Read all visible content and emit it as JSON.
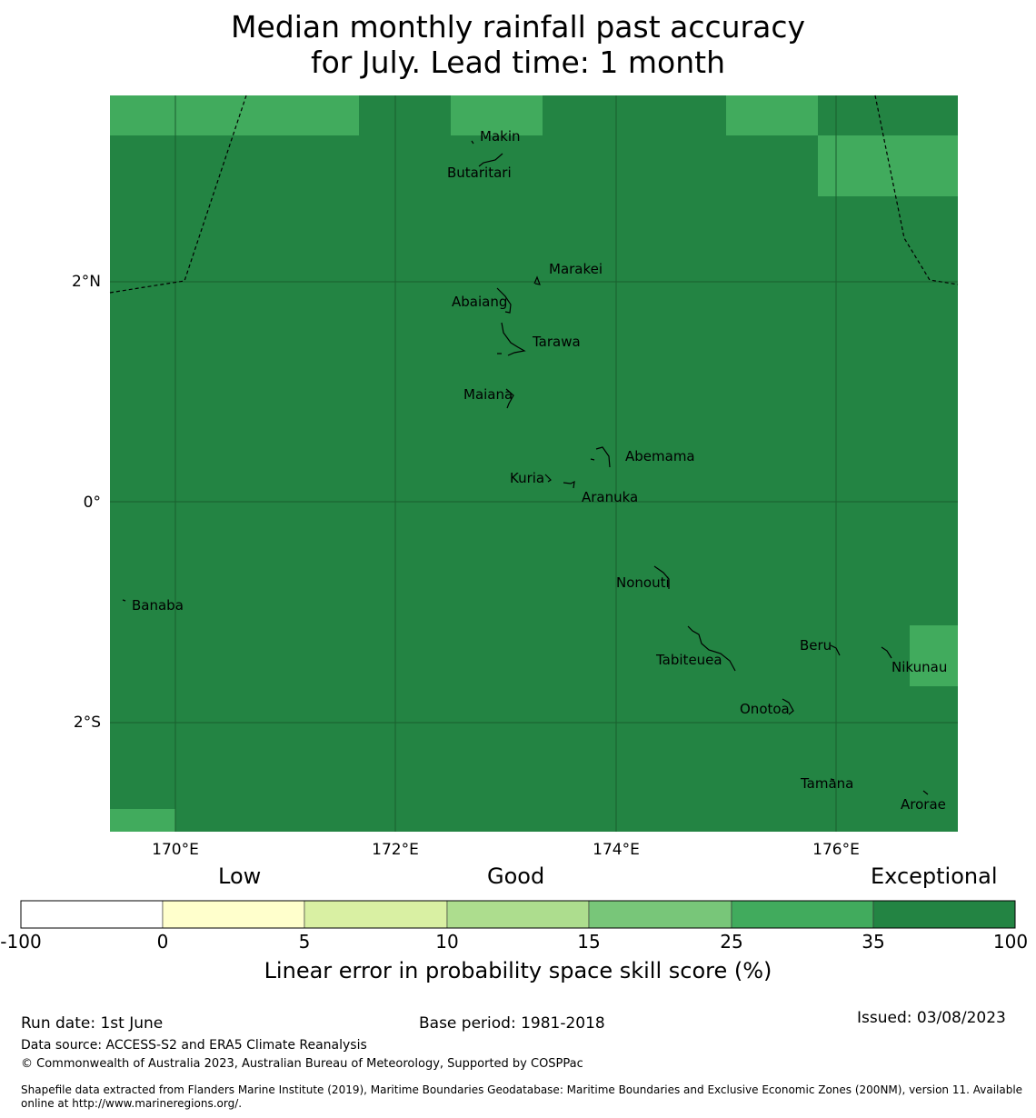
{
  "title_line1": "Median monthly rainfall past accuracy",
  "title_line2": "for July. Lead time: 1 month",
  "colors": {
    "exceptional": "#238443",
    "band_25_35": "#41ab5d",
    "band_15_25": "#78c679",
    "band_10_15": "#addd8e",
    "band_5_10": "#d9f0a3",
    "band_0_5": "#ffffcc",
    "band_neg": "#ffffff"
  },
  "map": {
    "lon_ticks": [
      "170°E",
      "172°E",
      "174°E",
      "176°E"
    ],
    "lat_ticks": [
      "2°N",
      "0°",
      "2°S"
    ],
    "islands": [
      {
        "name": "Makin"
      },
      {
        "name": "Butaritari"
      },
      {
        "name": "Marakei"
      },
      {
        "name": "Abaiang"
      },
      {
        "name": "Tarawa"
      },
      {
        "name": "Maiana"
      },
      {
        "name": "Abemama"
      },
      {
        "name": "Kuria"
      },
      {
        "name": "Aranuka"
      },
      {
        "name": "Banaba"
      },
      {
        "name": "Nonouti"
      },
      {
        "name": "Beru"
      },
      {
        "name": "Tabiteuea"
      },
      {
        "name": "Nikunau"
      },
      {
        "name": "Onotoa"
      },
      {
        "name": "Tamana"
      },
      {
        "name": "Arorae"
      }
    ]
  },
  "colorbar": {
    "categories": [
      "Low",
      "Good",
      "Exceptional"
    ],
    "ticks": [
      "-100",
      "0",
      "5",
      "10",
      "15",
      "25",
      "35",
      "100"
    ],
    "label": "Linear error in probability space skill score (%)"
  },
  "footer": {
    "run_date": "Run date: 1st June",
    "base_period": "Base period: 1981-2018",
    "issued": "Issued: 03/08/2023",
    "data_source": "Data source: ACCESS-S2 and ERA5 Climate Reanalysis",
    "copyright": "© Commonwealth of Australia 2023, Australian Bureau of Meteorology, Supported by COSPPac",
    "shapefile_line1": "Shapefile data extracted from Flanders Marine Institute (2019), Maritime Boundaries Geodatabase: Maritime Boundaries and Exclusive Economic Zones (200NM), version 11. Available",
    "shapefile_line2": "online at http://www.marineregions.org/."
  }
}
